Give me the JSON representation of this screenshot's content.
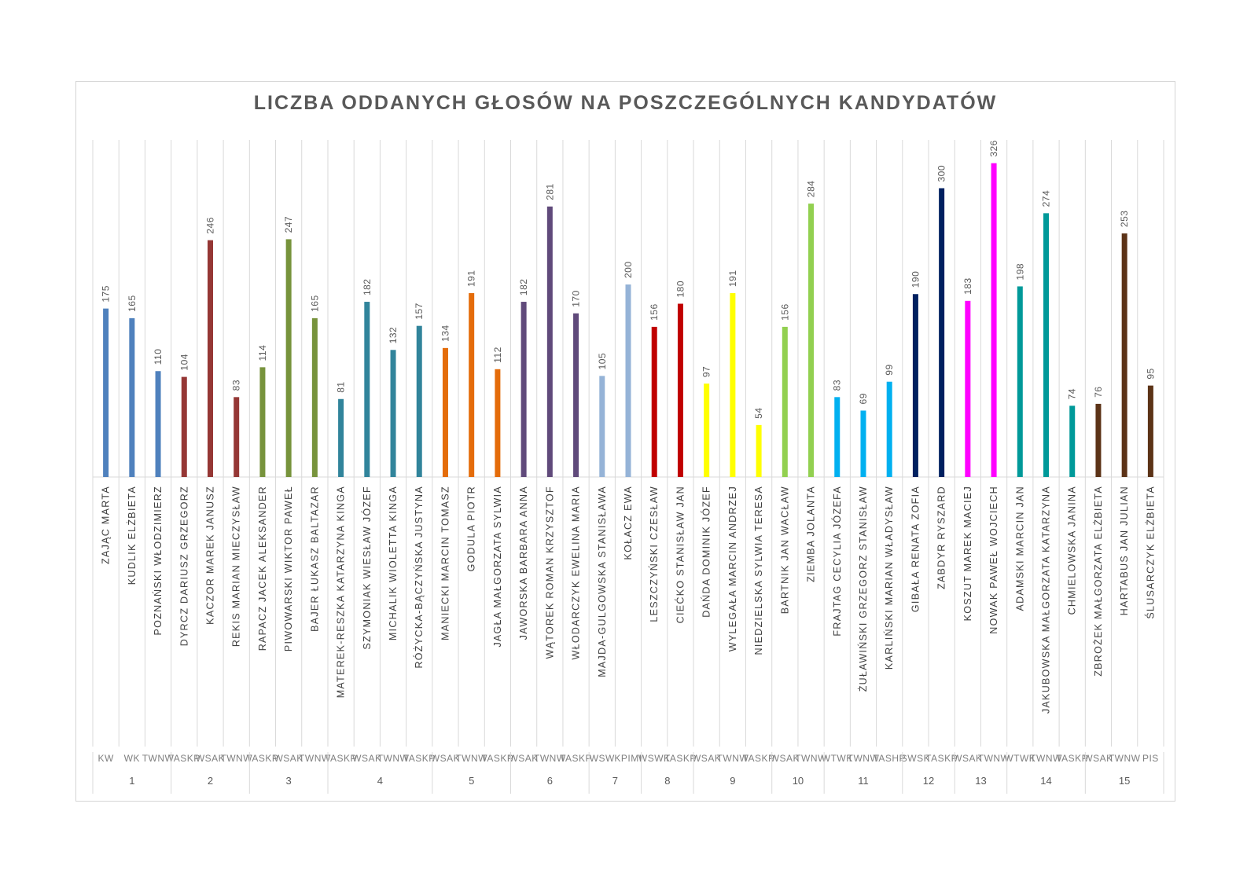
{
  "chart_data": {
    "type": "bar",
    "title": "LICZBA ODDANYCH GŁOSÓW NA POSZCZEGÓLNYCH KANDYDATÓW",
    "xlabel": "",
    "ylabel": "",
    "ylim": [
      0,
      340
    ],
    "grid": true,
    "legend": "none",
    "bars": [
      {
        "name": "ZAJĄC MARTA",
        "value": 175,
        "color": "#4f81bd",
        "code": "KW"
      },
      {
        "name": "KUDLIK ELŻBIETA",
        "value": 165,
        "color": "#4f81bd",
        "code": "WK"
      },
      {
        "name": "POZNAŃSKI WŁODZIMIERZ",
        "value": 110,
        "color": "#4f81bd",
        "code": "TWNW"
      },
      {
        "name": "DYRCZ DARIUSZ GRZEGORZ",
        "value": 104,
        "color": "#953735",
        "code": "TASKP"
      },
      {
        "name": "KACZOR MAREK JANUSZ",
        "value": 246,
        "color": "#953735",
        "code": "WSAK"
      },
      {
        "name": "REKIS MARIAN MIECZYSŁAW",
        "value": 83,
        "color": "#953735",
        "code": "TWNW"
      },
      {
        "name": "RAPACZ JACEK ALEKSANDER",
        "value": 114,
        "color": "#77933c",
        "code": "TASKP"
      },
      {
        "name": "PIWOWARSKI WIKTOR PAWEŁ",
        "value": 247,
        "color": "#77933c",
        "code": "WSAK"
      },
      {
        "name": "BAJER ŁUKASZ BALTAZAR",
        "value": 165,
        "color": "#77933c",
        "code": "TWNW"
      },
      {
        "name": "MATEREK-RESZKA KATARZYNA KINGA",
        "value": 81,
        "color": "#31849b",
        "code": "TASKP"
      },
      {
        "name": "SZYMONIAK WIESŁAW JÓZEF",
        "value": 182,
        "color": "#31849b",
        "code": "WSAK"
      },
      {
        "name": "MICHALIK WIOLETTA KINGA",
        "value": 132,
        "color": "#31849b",
        "code": "TWNW"
      },
      {
        "name": "RÓŻYCKA-BĄCZYŃSKA JUSTYNA",
        "value": 157,
        "color": "#31849b",
        "code": "TASKP"
      },
      {
        "name": "MANIECKI MARCIN TOMASZ",
        "value": 134,
        "color": "#e46c0a",
        "code": "WSAK"
      },
      {
        "name": "GODULA PIOTR",
        "value": 191,
        "color": "#e46c0a",
        "code": "TWNW"
      },
      {
        "name": "JAGŁA MAŁGORZATA SYLWIA",
        "value": 112,
        "color": "#e46c0a",
        "code": "TASKP"
      },
      {
        "name": "JAWORSKA BARBARA ANNA",
        "value": 182,
        "color": "#604a7b",
        "code": "WSAK"
      },
      {
        "name": "WĄTOREK ROMAN KRZYSZTOF",
        "value": 281,
        "color": "#604a7b",
        "code": "TWNW"
      },
      {
        "name": "WŁODARCZYK EWELINA MARIA",
        "value": 170,
        "color": "#604a7b",
        "code": "TASKP"
      },
      {
        "name": "MAJDA-GULGOWSKA STANISŁAWA",
        "value": 105,
        "color": "#95b3d7",
        "code": "WSW"
      },
      {
        "name": "KOŁACZ EWA",
        "value": 200,
        "color": "#95b3d7",
        "code": "KPIMI"
      },
      {
        "name": "LESZCZYŃSKI CZESŁAW",
        "value": 156,
        "color": "#c00000",
        "code": "WSWK"
      },
      {
        "name": "CIEĆKO STANISŁAW JAN",
        "value": 180,
        "color": "#c00000",
        "code": "TASKP"
      },
      {
        "name": "DAŃDA DOMINIK JÓZEF",
        "value": 97,
        "color": "#ffff00",
        "code": "WSAK"
      },
      {
        "name": "WYLEGAŁA MARCIN ANDRZEJ",
        "value": 191,
        "color": "#ffff00",
        "code": "TWNW"
      },
      {
        "name": "NIEDZIELSKA SYLWIA TERESA",
        "value": 54,
        "color": "#ffff00",
        "code": "TASKP"
      },
      {
        "name": "BARTNIK JAN WACŁAW",
        "value": 156,
        "color": "#92d050",
        "code": "WSAK"
      },
      {
        "name": "ZIEMBA JOLANTA",
        "value": 284,
        "color": "#92d050",
        "code": "TWNW"
      },
      {
        "name": "FRAJTAG CECYLIA JÓZEFA",
        "value": 83,
        "color": "#00b0f0",
        "code": "WTWK"
      },
      {
        "name": "ŻUŁAWIŃSKI GRZEGORZ STANISŁAW",
        "value": 69,
        "color": "#00b0f0",
        "code": "TWNW"
      },
      {
        "name": "KARLIŃSKI MARIAN WŁADYSŁAW",
        "value": 99,
        "color": "#00b0f0",
        "code": "TASHP"
      },
      {
        "name": "GIBAŁA RENATA ZOFIA",
        "value": 190,
        "color": "#002060",
        "code": "SWSK"
      },
      {
        "name": "ZABDYR RYSZARD",
        "value": 300,
        "color": "#002060",
        "code": "TASKP"
      },
      {
        "name": "KOSZUT MAREK MACIEJ",
        "value": 183,
        "color": "#ff00ff",
        "code": "WSAK"
      },
      {
        "name": "NOWAK PAWEŁ WOJCIECH",
        "value": 326,
        "color": "#ff00ff",
        "code": "TWNW"
      },
      {
        "name": "ADAMSKI MARCIN JAN",
        "value": 198,
        "color": "#009999",
        "code": "WTWK"
      },
      {
        "name": "JAKUBOWSKA MAŁGORZATA KATARZYNA",
        "value": 274,
        "color": "#009999",
        "code": "TWNW"
      },
      {
        "name": "CHMIELOWSKA JANINA",
        "value": 74,
        "color": "#009999",
        "code": "TASKP"
      },
      {
        "name": "ZBROŻEK MAŁGORZATA ELŻBIETA",
        "value": 76,
        "color": "#5c3317",
        "code": "WSAK"
      },
      {
        "name": "HARTABUS JAN JULIAN",
        "value": 253,
        "color": "#5c3317",
        "code": "TWNW"
      },
      {
        "name": "ŚLUSARCZYK ELŻBIETA",
        "value": 95,
        "color": "#5c3317",
        "code": "PIS"
      }
    ],
    "groups": [
      {
        "label": "1",
        "count": 3
      },
      {
        "label": "2",
        "count": 3
      },
      {
        "label": "3",
        "count": 3
      },
      {
        "label": "4",
        "count": 4
      },
      {
        "label": "5",
        "count": 3
      },
      {
        "label": "6",
        "count": 3
      },
      {
        "label": "7",
        "count": 2
      },
      {
        "label": "8",
        "count": 2
      },
      {
        "label": "9",
        "count": 3
      },
      {
        "label": "10",
        "count": 2
      },
      {
        "label": "11",
        "count": 3
      },
      {
        "label": "12",
        "count": 2
      },
      {
        "label": "13",
        "count": 2
      },
      {
        "label": "14",
        "count": 3
      },
      {
        "label": "15",
        "count": 3
      }
    ]
  }
}
